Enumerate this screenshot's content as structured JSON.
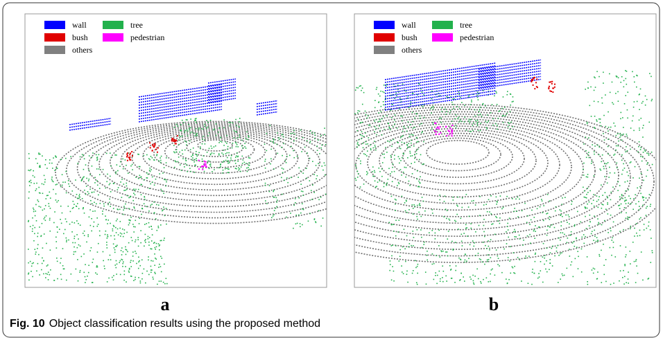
{
  "figure": {
    "panels": [
      {
        "label": "a",
        "legend": [
          {
            "name": "wall",
            "color": "#0000ff"
          },
          {
            "name": "bush",
            "color": "#e00000"
          },
          {
            "name": "others",
            "color": "#808080"
          },
          {
            "name": "tree",
            "color": "#22b14c"
          },
          {
            "name": "pedestrian",
            "color": "#ff00ff"
          }
        ]
      },
      {
        "label": "b",
        "legend": [
          {
            "name": "wall",
            "color": "#0000ff"
          },
          {
            "name": "bush",
            "color": "#e00000"
          },
          {
            "name": "others",
            "color": "#808080"
          },
          {
            "name": "tree",
            "color": "#22b14c"
          },
          {
            "name": "pedestrian",
            "color": "#ff00ff"
          }
        ]
      }
    ],
    "caption": {
      "label": "Fig. 10",
      "text": "Object classification results using the proposed method"
    }
  }
}
